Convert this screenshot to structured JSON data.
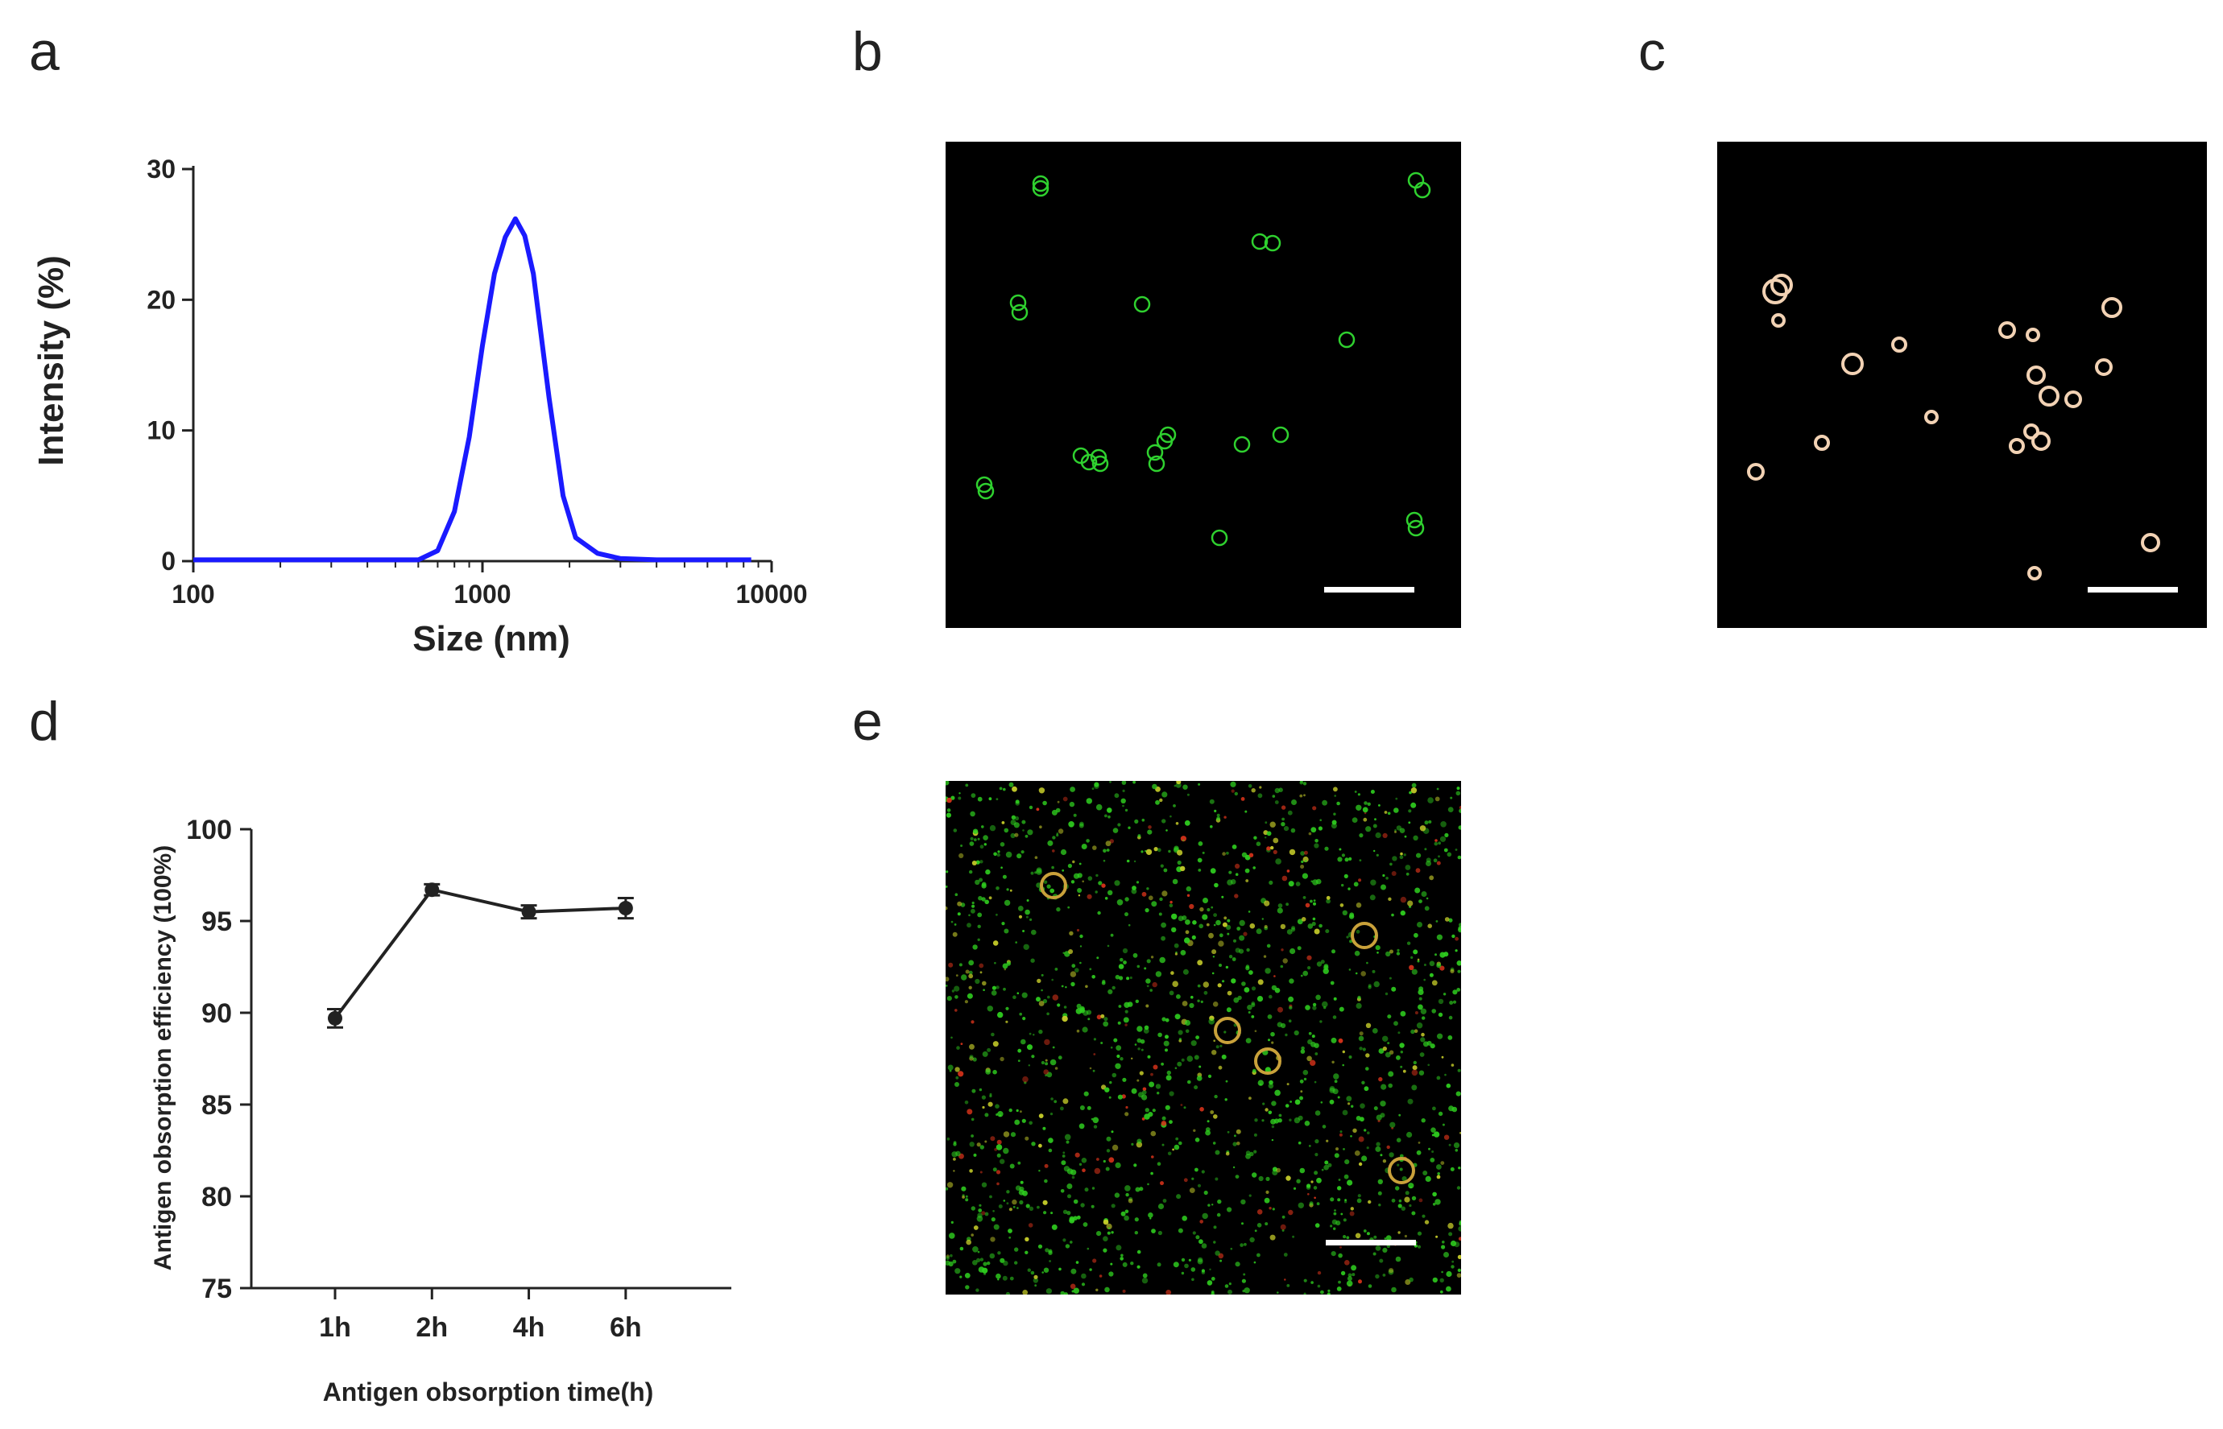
{
  "panels": {
    "a": "a",
    "b": "b",
    "c": "c",
    "d": "d",
    "e": "e"
  },
  "chart_data": [
    {
      "panel": "a",
      "type": "line",
      "xlabel": "Size (nm)",
      "ylabel": "Intensity (%)",
      "xscale": "log",
      "xlim": [
        100,
        10000
      ],
      "ylim": [
        0,
        30
      ],
      "xticks": [
        100,
        1000,
        10000
      ],
      "xtick_labels": [
        "100",
        "1000",
        "10000"
      ],
      "yticks": [
        0,
        10,
        20,
        30
      ],
      "ytick_labels": [
        "0",
        "10",
        "20",
        "30"
      ],
      "grid": false,
      "series": [
        {
          "color": "#1a1aff",
          "x": [
            100,
            600,
            700,
            800,
            900,
            1000,
            1100,
            1200,
            1300,
            1400,
            1500,
            1700,
            1900,
            2100,
            2500,
            3000,
            4000,
            5000,
            8500
          ],
          "y": [
            0.1,
            0.1,
            0.8,
            3.8,
            9.5,
            16.5,
            22.0,
            24.8,
            26.2,
            24.9,
            22.0,
            12.5,
            5.0,
            1.8,
            0.6,
            0.2,
            0.1,
            0.1,
            0.1
          ]
        }
      ]
    },
    {
      "panel": "d",
      "type": "line",
      "xlabel": "Antigen obsorption time(h)",
      "ylabel": "Antigen obsorption efficiency (100%)",
      "categories": [
        "1h",
        "2h",
        "4h",
        "6h"
      ],
      "ylim": [
        75,
        100
      ],
      "yticks": [
        75,
        80,
        85,
        90,
        95,
        100
      ],
      "ytick_labels": [
        "75",
        "80",
        "85",
        "90",
        "95",
        "100"
      ],
      "grid": false,
      "series": [
        {
          "color": "#222222",
          "values": [
            89.7,
            96.7,
            95.5,
            95.7
          ],
          "errors": [
            0.5,
            0.3,
            0.35,
            0.55
          ]
        }
      ]
    }
  ],
  "micrographs": {
    "b": {
      "ring_color": "#2fd12f"
    },
    "c": {
      "ring_color": "#f2d2b4"
    },
    "e": {
      "ring_color": "#c9a13a",
      "speckle_green": "#2fcf1f",
      "speckle_red": "#d8331a",
      "speckle_yellow": "#c9d02a"
    },
    "scale_bar_color": "#ffffff"
  }
}
